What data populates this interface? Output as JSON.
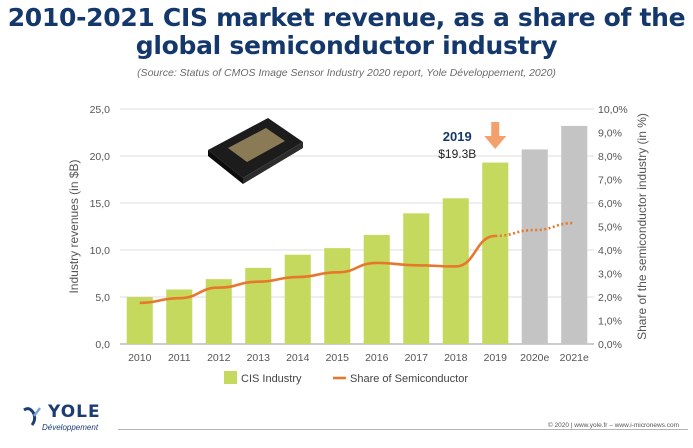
{
  "title_line1": "2010-2021 CIS market revenue, as a share of the",
  "title_line2": "global semiconductor industry",
  "source": "(Source: Status of CMOS Image Sensor Industry 2020 report, Yole Développement, 2020)",
  "logo": {
    "name": "YOLE",
    "sub": "Développement"
  },
  "footer": "© 2020 | www.yole.fr – www.i-micronews.com",
  "colors": {
    "title": "#14386b",
    "bars": "#c5d95f",
    "forecast_bars": "#c4c4c4",
    "line": "#e8772e",
    "arrow": "#f4a06c"
  },
  "chart_data": {
    "type": "bar",
    "categories": [
      "2010",
      "2011",
      "2012",
      "2013",
      "2014",
      "2015",
      "2016",
      "2017",
      "2018",
      "2019",
      "2020e",
      "2021e"
    ],
    "forecast_categories": [
      "2020e",
      "2021e"
    ],
    "series": [
      {
        "name": "CIS Industry",
        "type": "bar",
        "axis": "left",
        "values": [
          5.0,
          5.8,
          6.9,
          8.1,
          9.5,
          10.2,
          11.6,
          13.9,
          15.5,
          19.3,
          20.7,
          23.2
        ]
      },
      {
        "name": "Share of Semiconductor",
        "type": "line",
        "axis": "right",
        "values": [
          1.75,
          1.95,
          2.4,
          2.65,
          2.85,
          3.05,
          3.45,
          3.35,
          3.3,
          4.6,
          4.85,
          5.15
        ]
      }
    ],
    "ylabel": "Industry revenues (in $B)",
    "y2label": "Share of the semiconductor industry (in %)",
    "ylim": [
      0,
      25
    ],
    "yticks": [
      "0,0",
      "5,0",
      "10,0",
      "15,0",
      "20,0",
      "25,0"
    ],
    "y2lim": [
      0,
      10
    ],
    "y2ticks": [
      "0,0%",
      "1,0%",
      "2,0%",
      "3,0%",
      "4,0%",
      "5,0%",
      "6,0%",
      "7,0%",
      "8,0%",
      "9,0%",
      "10,0%"
    ],
    "annotation": {
      "category": "2019",
      "label_year": "2019",
      "label_value": "$19.3B"
    },
    "grid": true,
    "legend": "bottom-center"
  }
}
